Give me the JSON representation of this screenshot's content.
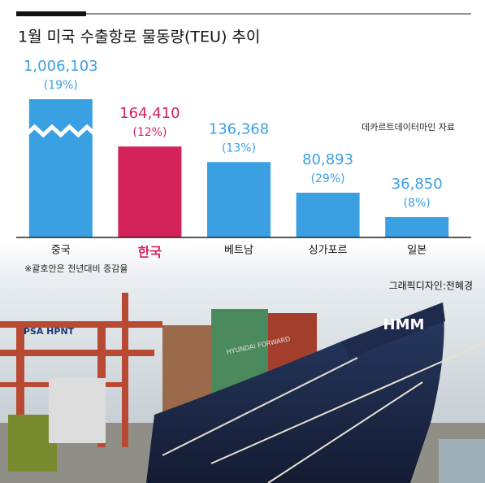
{
  "chart_data": {
    "type": "bar",
    "title": "1월 미국 수출항로 물동량(TEU) 추이",
    "categories": [
      "중국",
      "한국",
      "베트남",
      "싱가포르",
      "일본"
    ],
    "values": [
      1006103,
      164410,
      136368,
      80893,
      36850
    ],
    "value_labels": [
      "1,006,103",
      "164,410",
      "136,368",
      "80,893",
      "36,850"
    ],
    "change_labels": [
      "(19%)",
      "(12%)",
      "(13%)",
      "(29%)",
      "(8%)"
    ],
    "colors": [
      "#3aa0e2",
      "#d4235a",
      "#3aa0e2",
      "#3aa0e2",
      "#3aa0e2"
    ],
    "highlight": 1,
    "ylim": [
      0,
      250000
    ],
    "axis_break": true,
    "source": "데카르트데이터마인 자료",
    "note": "※괄호안은 전년대비 증감율",
    "credit": "그래픽디자인:전혜경",
    "photo_labels": [
      "HMM",
      "PSA HPNT",
      "HYUNDAI FORWARD"
    ]
  }
}
